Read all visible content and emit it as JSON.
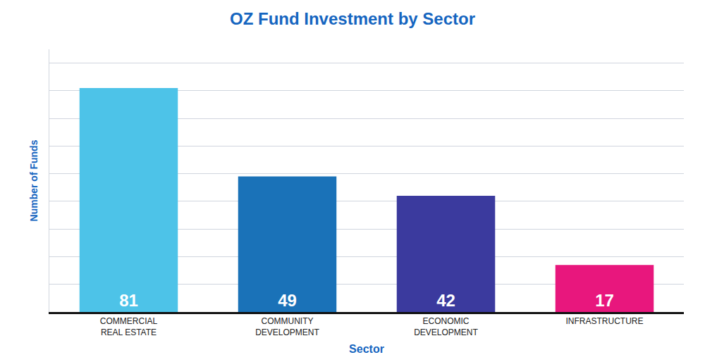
{
  "chart_data": {
    "type": "bar",
    "title": "OZ Fund Investment by Sector",
    "xlabel": "Sector",
    "ylabel": "Number of Funds",
    "categories": [
      "COMMERCIAL\nREAL ESTATE",
      "COMMUNITY\nDEVELOPMENT",
      "ECONOMIC\nDEVELOPMENT",
      "INFRASTRUCTURE"
    ],
    "values": [
      81,
      49,
      42,
      17
    ],
    "colors": [
      "#4dc3e8",
      "#1a72b8",
      "#3b3a9e",
      "#e8177d"
    ],
    "ylim": [
      0,
      95
    ],
    "yticks": [
      0,
      10,
      20,
      30,
      40,
      50,
      60,
      70,
      80,
      90
    ],
    "grid": true,
    "data_labels": true,
    "tick_labels": "x"
  }
}
